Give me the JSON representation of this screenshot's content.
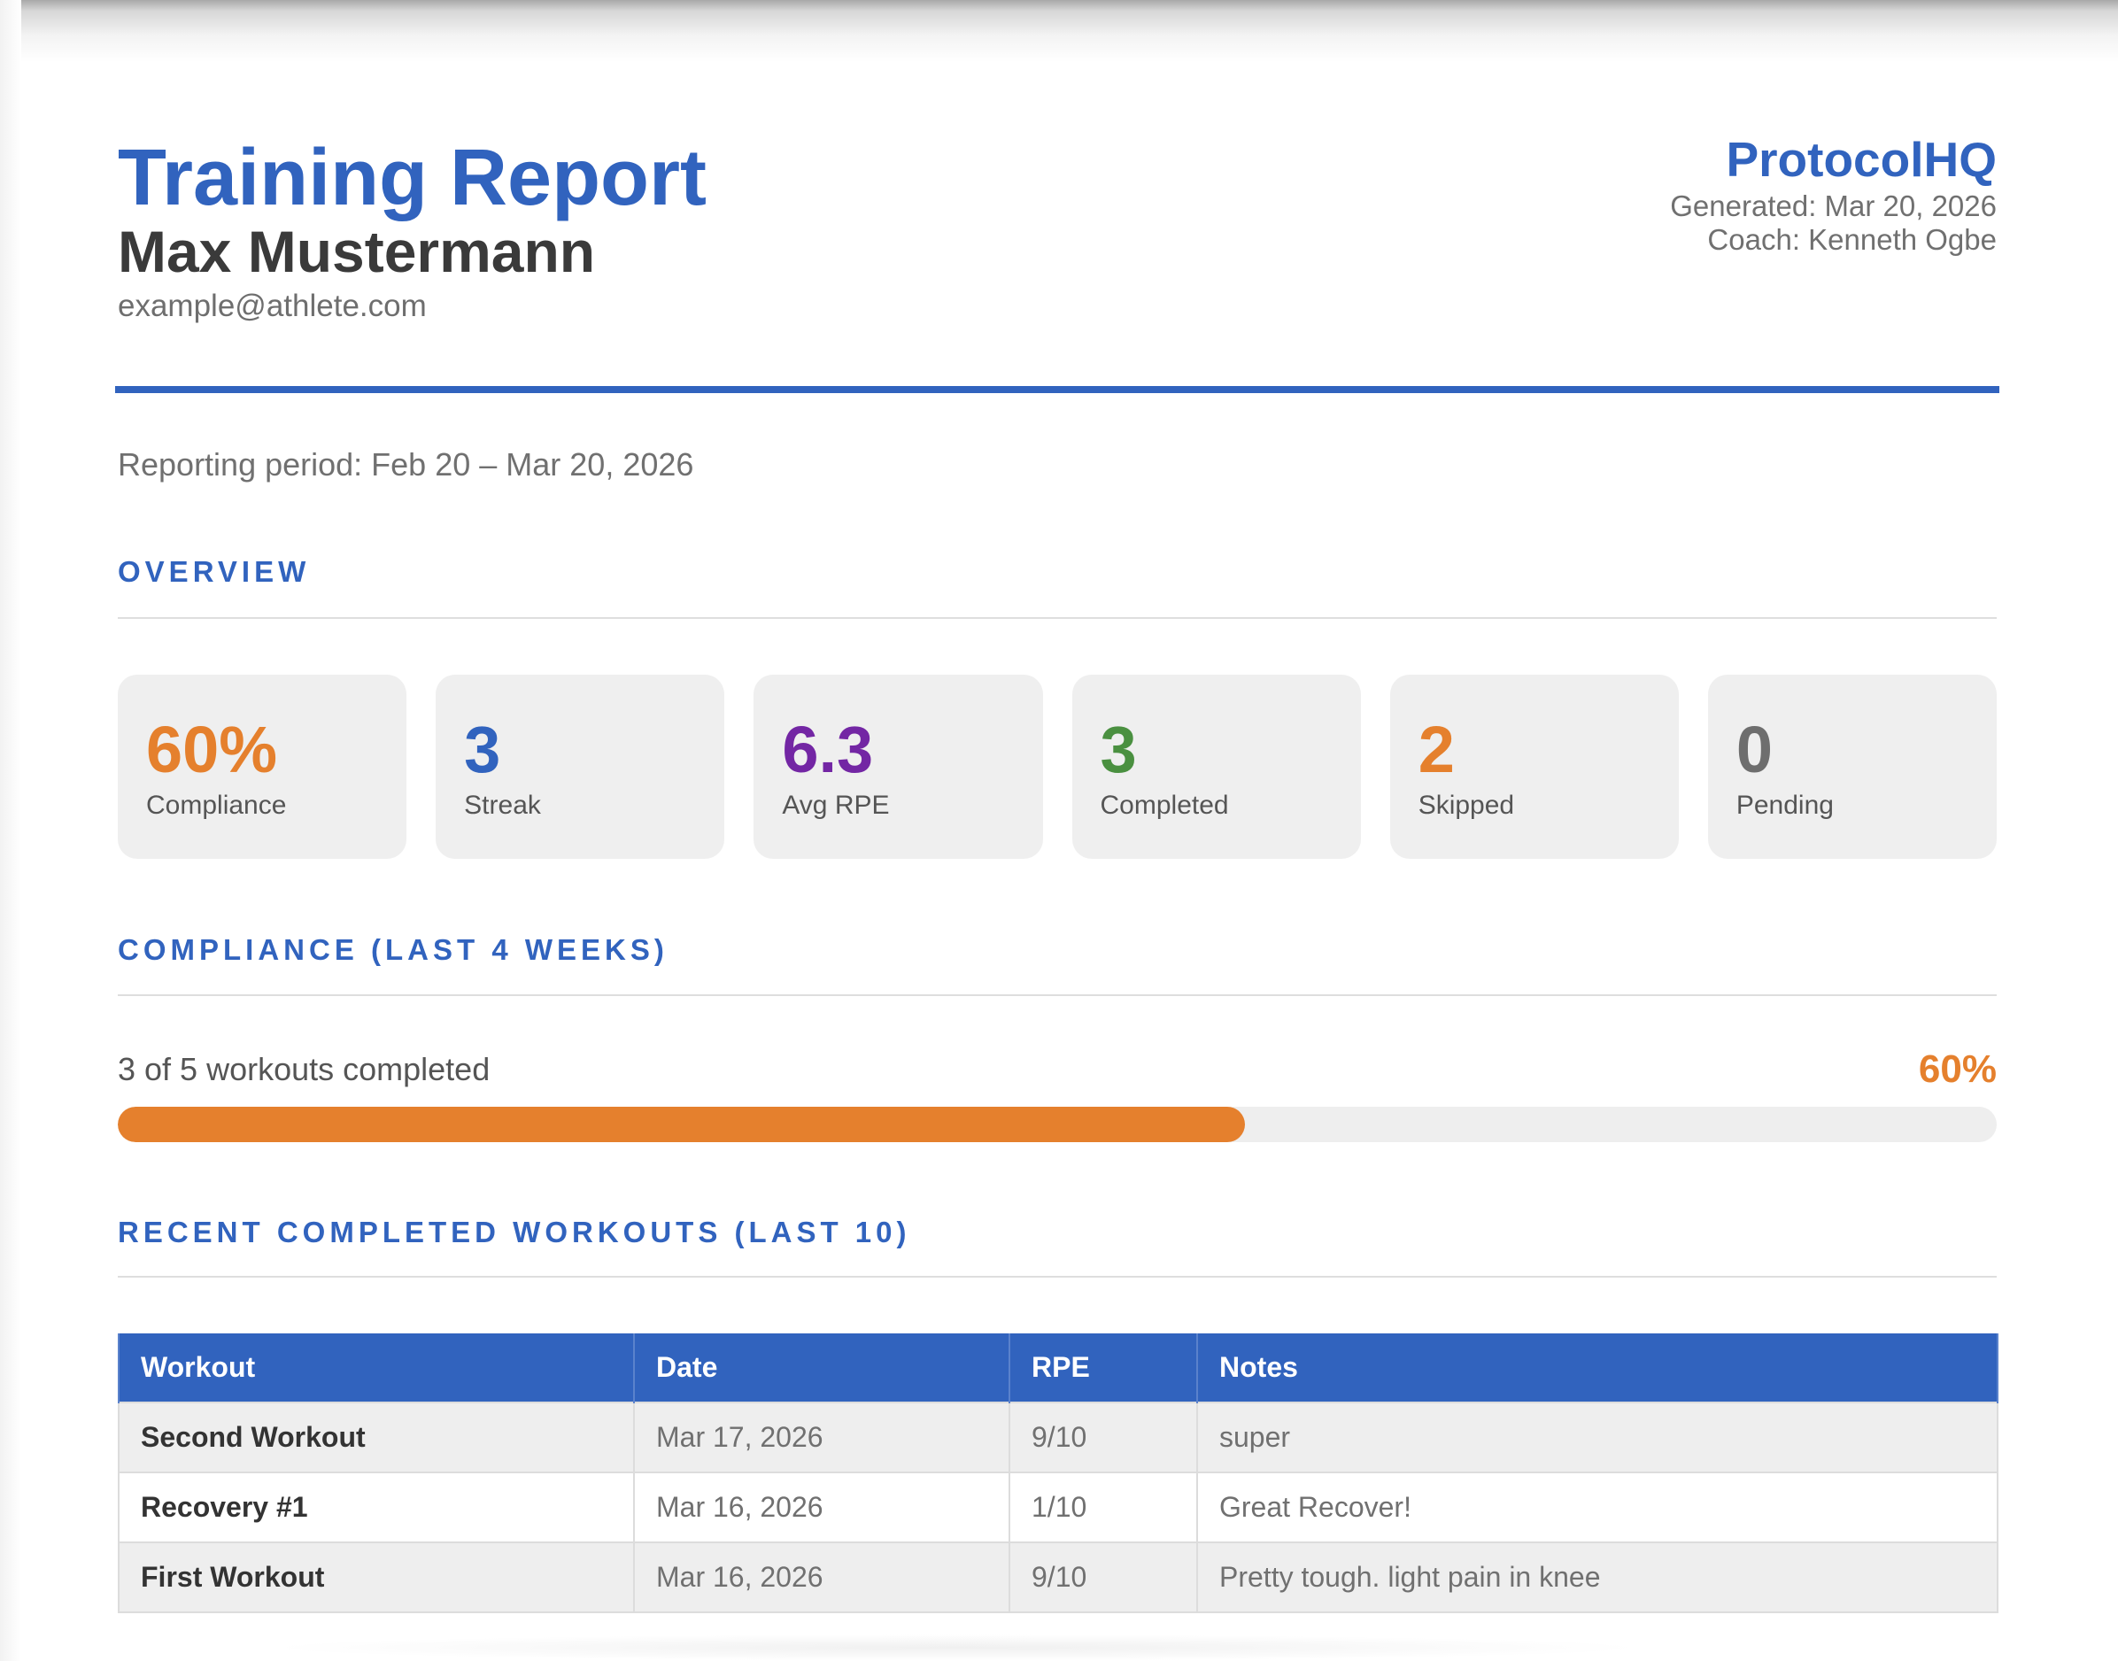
{
  "header": {
    "title": "Training Report",
    "athlete_name": "Max Mustermann",
    "athlete_email": "example@athlete.com",
    "brand": "ProtocolHQ",
    "generated": "Generated: Mar 20, 2026",
    "coach": "Coach: Kenneth Ogbe"
  },
  "period": "Reporting period: Feb 20 – Mar 20, 2026",
  "overview": {
    "title": "OVERVIEW",
    "stats": [
      {
        "value": "60%",
        "label": "Compliance",
        "color": "#e5802d"
      },
      {
        "value": "3",
        "label": "Streak",
        "color": "#3163be"
      },
      {
        "value": "6.3",
        "label": "Avg RPE",
        "color": "#7326a4"
      },
      {
        "value": "3",
        "label": "Completed",
        "color": "#4a9040"
      },
      {
        "value": "2",
        "label": "Skipped",
        "color": "#e5802d"
      },
      {
        "value": "0",
        "label": "Pending",
        "color": "#6e6e6e"
      }
    ]
  },
  "compliance": {
    "title": "COMPLIANCE (LAST 4 WEEKS)",
    "summary": "3 of 5 workouts completed",
    "percent_label": "60%",
    "fraction": 0.6
  },
  "workouts": {
    "title": "RECENT COMPLETED WORKOUTS (LAST 10)",
    "columns": [
      "Workout",
      "Date",
      "RPE",
      "Notes"
    ],
    "rows": [
      {
        "workout": "Second Workout",
        "date": "Mar 17, 2026",
        "rpe": "9/10",
        "notes": "super"
      },
      {
        "workout": "Recovery #1",
        "date": "Mar 16, 2026",
        "rpe": "1/10",
        "notes": "Great Recover!"
      },
      {
        "workout": "First Workout",
        "date": "Mar 16, 2026",
        "rpe": "9/10",
        "notes": "Pretty tough. light pain in knee"
      }
    ]
  },
  "colors": {
    "primary": "#3163be",
    "accent": "#e5802d"
  }
}
